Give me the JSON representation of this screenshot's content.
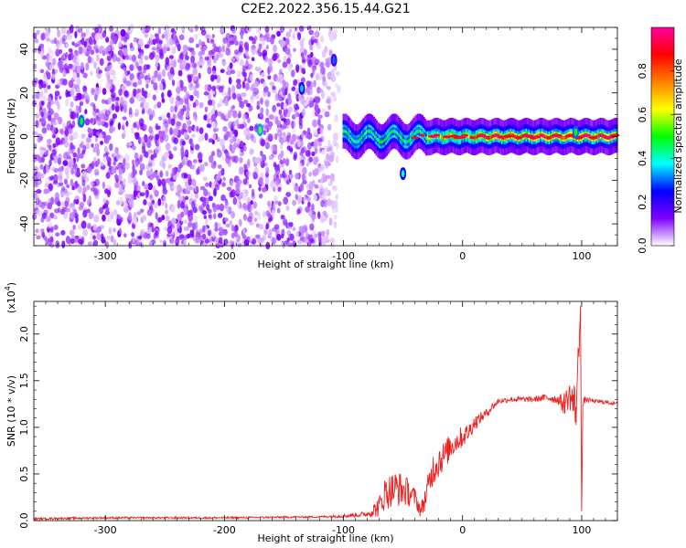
{
  "title": "C2E2.2022.356.15.44.G21",
  "chart_data": [
    {
      "type": "heatmap",
      "xlabel": "Height of straight line (km)",
      "ylabel": "Frequency (Hz)",
      "xlim": [
        -360,
        130
      ],
      "ylim": [
        -50,
        50
      ],
      "xticks": [
        -300,
        -200,
        -100,
        0,
        100
      ],
      "yticks": [
        -40,
        -20,
        0,
        20,
        40
      ],
      "colorbar": {
        "label": "Normalized spectral amplitude",
        "range": [
          0.0,
          1.0
        ],
        "ticks": [
          0.0,
          0.2,
          0.4,
          0.6,
          0.8
        ],
        "tick_labels": [
          "0.0",
          "0.2",
          "0.4",
          "0.6",
          "0.8"
        ],
        "colormap": [
          "#ffffff",
          "#8000ff",
          "#0000ff",
          "#00ffff",
          "#00ff00",
          "#ffff00",
          "#ff8000",
          "#ff0000",
          "#ff00a0"
        ]
      },
      "regions": [
        {
          "x": [
            -360,
            -100
          ],
          "y": [
            -50,
            50
          ],
          "amplitude": 0.1,
          "pattern": "speckle"
        },
        {
          "x": [
            -100,
            130
          ],
          "y": [
            -3,
            3
          ],
          "amplitude": 0.9,
          "pattern": "ridge"
        }
      ],
      "features": [
        {
          "x": -320,
          "y": 7,
          "amplitude": 0.5
        },
        {
          "x": -170,
          "y": 3,
          "amplitude": 0.55
        },
        {
          "x": -135,
          "y": 22,
          "amplitude": 0.35
        },
        {
          "x": -108,
          "y": 35,
          "amplitude": 0.3
        },
        {
          "x": -50,
          "y": -17,
          "amplitude": 0.4
        },
        {
          "x": 95,
          "y": 2,
          "amplitude": 0.5
        }
      ],
      "grid": false
    },
    {
      "type": "line",
      "xlabel": "Height of straight line (km)",
      "ylabel": "SNR (10 * v/v)",
      "yscale_label": "(x10",
      "yscale_exponent": "4",
      "yscale_close": ")",
      "xlim": [
        -360,
        130
      ],
      "ylim": [
        0.0,
        2.35
      ],
      "xticks": [
        -300,
        -200,
        -100,
        0,
        100
      ],
      "yticks": [
        0.0,
        0.5,
        1.0,
        1.5,
        2.0
      ],
      "ytick_labels": [
        "0.0",
        "0.5",
        "1.0",
        "1.5",
        "2.0"
      ],
      "series": [
        {
          "color": "#ee2222",
          "x": [
            -360,
            -300,
            -200,
            -120,
            -100,
            -80,
            -70,
            -65,
            -55,
            -45,
            -40,
            -35,
            -30,
            -25,
            -20,
            -15,
            -10,
            -5,
            0,
            5,
            10,
            15,
            20,
            25,
            30,
            40,
            50,
            60,
            70,
            80,
            85,
            90,
            95,
            97,
            99,
            100,
            101,
            103,
            110,
            120,
            130
          ],
          "y": [
            0.02,
            0.03,
            0.03,
            0.04,
            0.05,
            0.07,
            0.15,
            0.3,
            0.35,
            0.3,
            0.25,
            0.1,
            0.3,
            0.55,
            0.65,
            0.7,
            0.8,
            0.85,
            0.9,
            0.95,
            1.05,
            1.1,
            1.15,
            1.22,
            1.28,
            1.3,
            1.3,
            1.3,
            1.32,
            1.3,
            1.25,
            1.35,
            1.2,
            1.6,
            2.3,
            0.1,
            1.25,
            1.3,
            1.28,
            1.27,
            1.25
          ],
          "noise": [
            0.01,
            0.01,
            0.01,
            0.01,
            0.02,
            0.03,
            0.12,
            0.18,
            0.2,
            0.15,
            0.1,
            0.08,
            0.15,
            0.18,
            0.2,
            0.15,
            0.15,
            0.12,
            0.12,
            0.1,
            0.08,
            0.06,
            0.05,
            0.04,
            0.03,
            0.03,
            0.03,
            0.03,
            0.04,
            0.05,
            0.12,
            0.15,
            0.3,
            0.3,
            0.0,
            0.0,
            0.05,
            0.03,
            0.02,
            0.02,
            0.02
          ]
        }
      ],
      "grid": false
    }
  ]
}
